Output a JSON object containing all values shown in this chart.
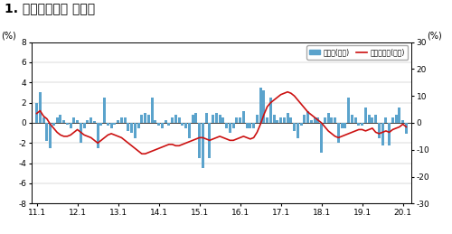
{
  "title": "1. 수출물가지수 동락률",
  "title_fontsize": 10,
  "ylabel_left": "(%)",
  "ylabel_right": "(%)",
  "ylim_left": [
    -8,
    8
  ],
  "ylim_right": [
    -30,
    30
  ],
  "yticks_left": [
    -8,
    -6,
    -4,
    -2,
    0,
    2,
    4,
    6,
    8
  ],
  "yticks_right": [
    -30,
    -20,
    -10,
    0,
    10,
    20,
    30
  ],
  "xtick_labels": [
    "11.1",
    "12.1",
    "13.1",
    "14.1",
    "15.1",
    "16.1",
    "17.1",
    "18.1",
    "19.1",
    "20.1"
  ],
  "bar_color": "#5BA3CC",
  "line_color": "#CC1111",
  "legend_bar": "전월비(좌측)",
  "legend_line": "전년동월비(우측)",
  "bar_values": [
    2.0,
    3.0,
    0.5,
    -1.8,
    -2.5,
    -0.3,
    0.5,
    0.8,
    0.3,
    -0.2,
    -0.5,
    0.5,
    0.3,
    -2.0,
    -0.5,
    0.3,
    0.5,
    0.2,
    -2.5,
    -0.3,
    2.5,
    -0.3,
    -0.5,
    -0.2,
    0.3,
    0.5,
    0.5,
    -0.8,
    -1.0,
    -1.5,
    -0.5,
    0.8,
    1.0,
    0.8,
    2.5,
    0.3,
    -0.3,
    -0.5,
    0.3,
    -0.3,
    0.5,
    0.8,
    0.5,
    -0.3,
    -0.5,
    -1.5,
    0.8,
    1.0,
    -3.5,
    -4.5,
    1.0,
    -3.5,
    0.8,
    1.0,
    0.8,
    0.5,
    -0.5,
    -1.0,
    -0.5,
    0.5,
    0.5,
    1.2,
    -0.5,
    -0.5,
    -0.5,
    0.8,
    3.5,
    3.2,
    0.5,
    2.5,
    0.8,
    0.3,
    0.5,
    0.5,
    1.0,
    0.5,
    -0.8,
    -1.5,
    -0.3,
    0.8,
    1.2,
    0.3,
    0.5,
    0.5,
    -3.0,
    0.5,
    1.0,
    0.5,
    0.5,
    -2.0,
    -0.5,
    -0.5,
    2.5,
    0.8,
    0.5,
    -0.3,
    -0.3,
    1.5,
    0.8,
    0.5,
    0.8,
    -1.5,
    -2.2,
    0.5,
    -2.2,
    0.5,
    0.8,
    1.5,
    0.3,
    -1.1
  ],
  "line_values_right": [
    3.5,
    4.5,
    2.5,
    1.5,
    -0.5,
    -2.0,
    -3.5,
    -4.5,
    -5.0,
    -5.0,
    -4.5,
    -3.5,
    -2.5,
    -3.5,
    -4.5,
    -5.0,
    -5.5,
    -6.5,
    -7.5,
    -6.5,
    -5.5,
    -4.5,
    -4.0,
    -4.5,
    -5.0,
    -5.5,
    -6.5,
    -7.5,
    -8.5,
    -9.5,
    -10.5,
    -11.5,
    -11.5,
    -11.0,
    -10.5,
    -10.0,
    -9.5,
    -9.0,
    -8.5,
    -8.0,
    -8.0,
    -8.5,
    -8.5,
    -8.0,
    -7.5,
    -7.0,
    -6.5,
    -6.0,
    -5.5,
    -5.5,
    -6.0,
    -6.5,
    -6.0,
    -5.5,
    -5.0,
    -5.5,
    -6.0,
    -6.5,
    -6.5,
    -6.0,
    -5.5,
    -5.0,
    -5.5,
    -6.0,
    -5.5,
    -3.5,
    -0.5,
    3.0,
    6.0,
    7.5,
    8.5,
    9.5,
    10.5,
    11.0,
    11.5,
    11.0,
    10.0,
    8.5,
    7.0,
    5.5,
    4.0,
    3.0,
    2.0,
    1.0,
    0.0,
    -1.5,
    -3.0,
    -4.0,
    -5.0,
    -5.5,
    -5.0,
    -4.5,
    -4.0,
    -3.5,
    -3.0,
    -2.5,
    -2.5,
    -3.0,
    -2.5,
    -2.0,
    -3.5,
    -4.0,
    -3.5,
    -3.0,
    -3.5,
    -2.5,
    -2.0,
    -1.5,
    -0.5,
    -1.5
  ]
}
